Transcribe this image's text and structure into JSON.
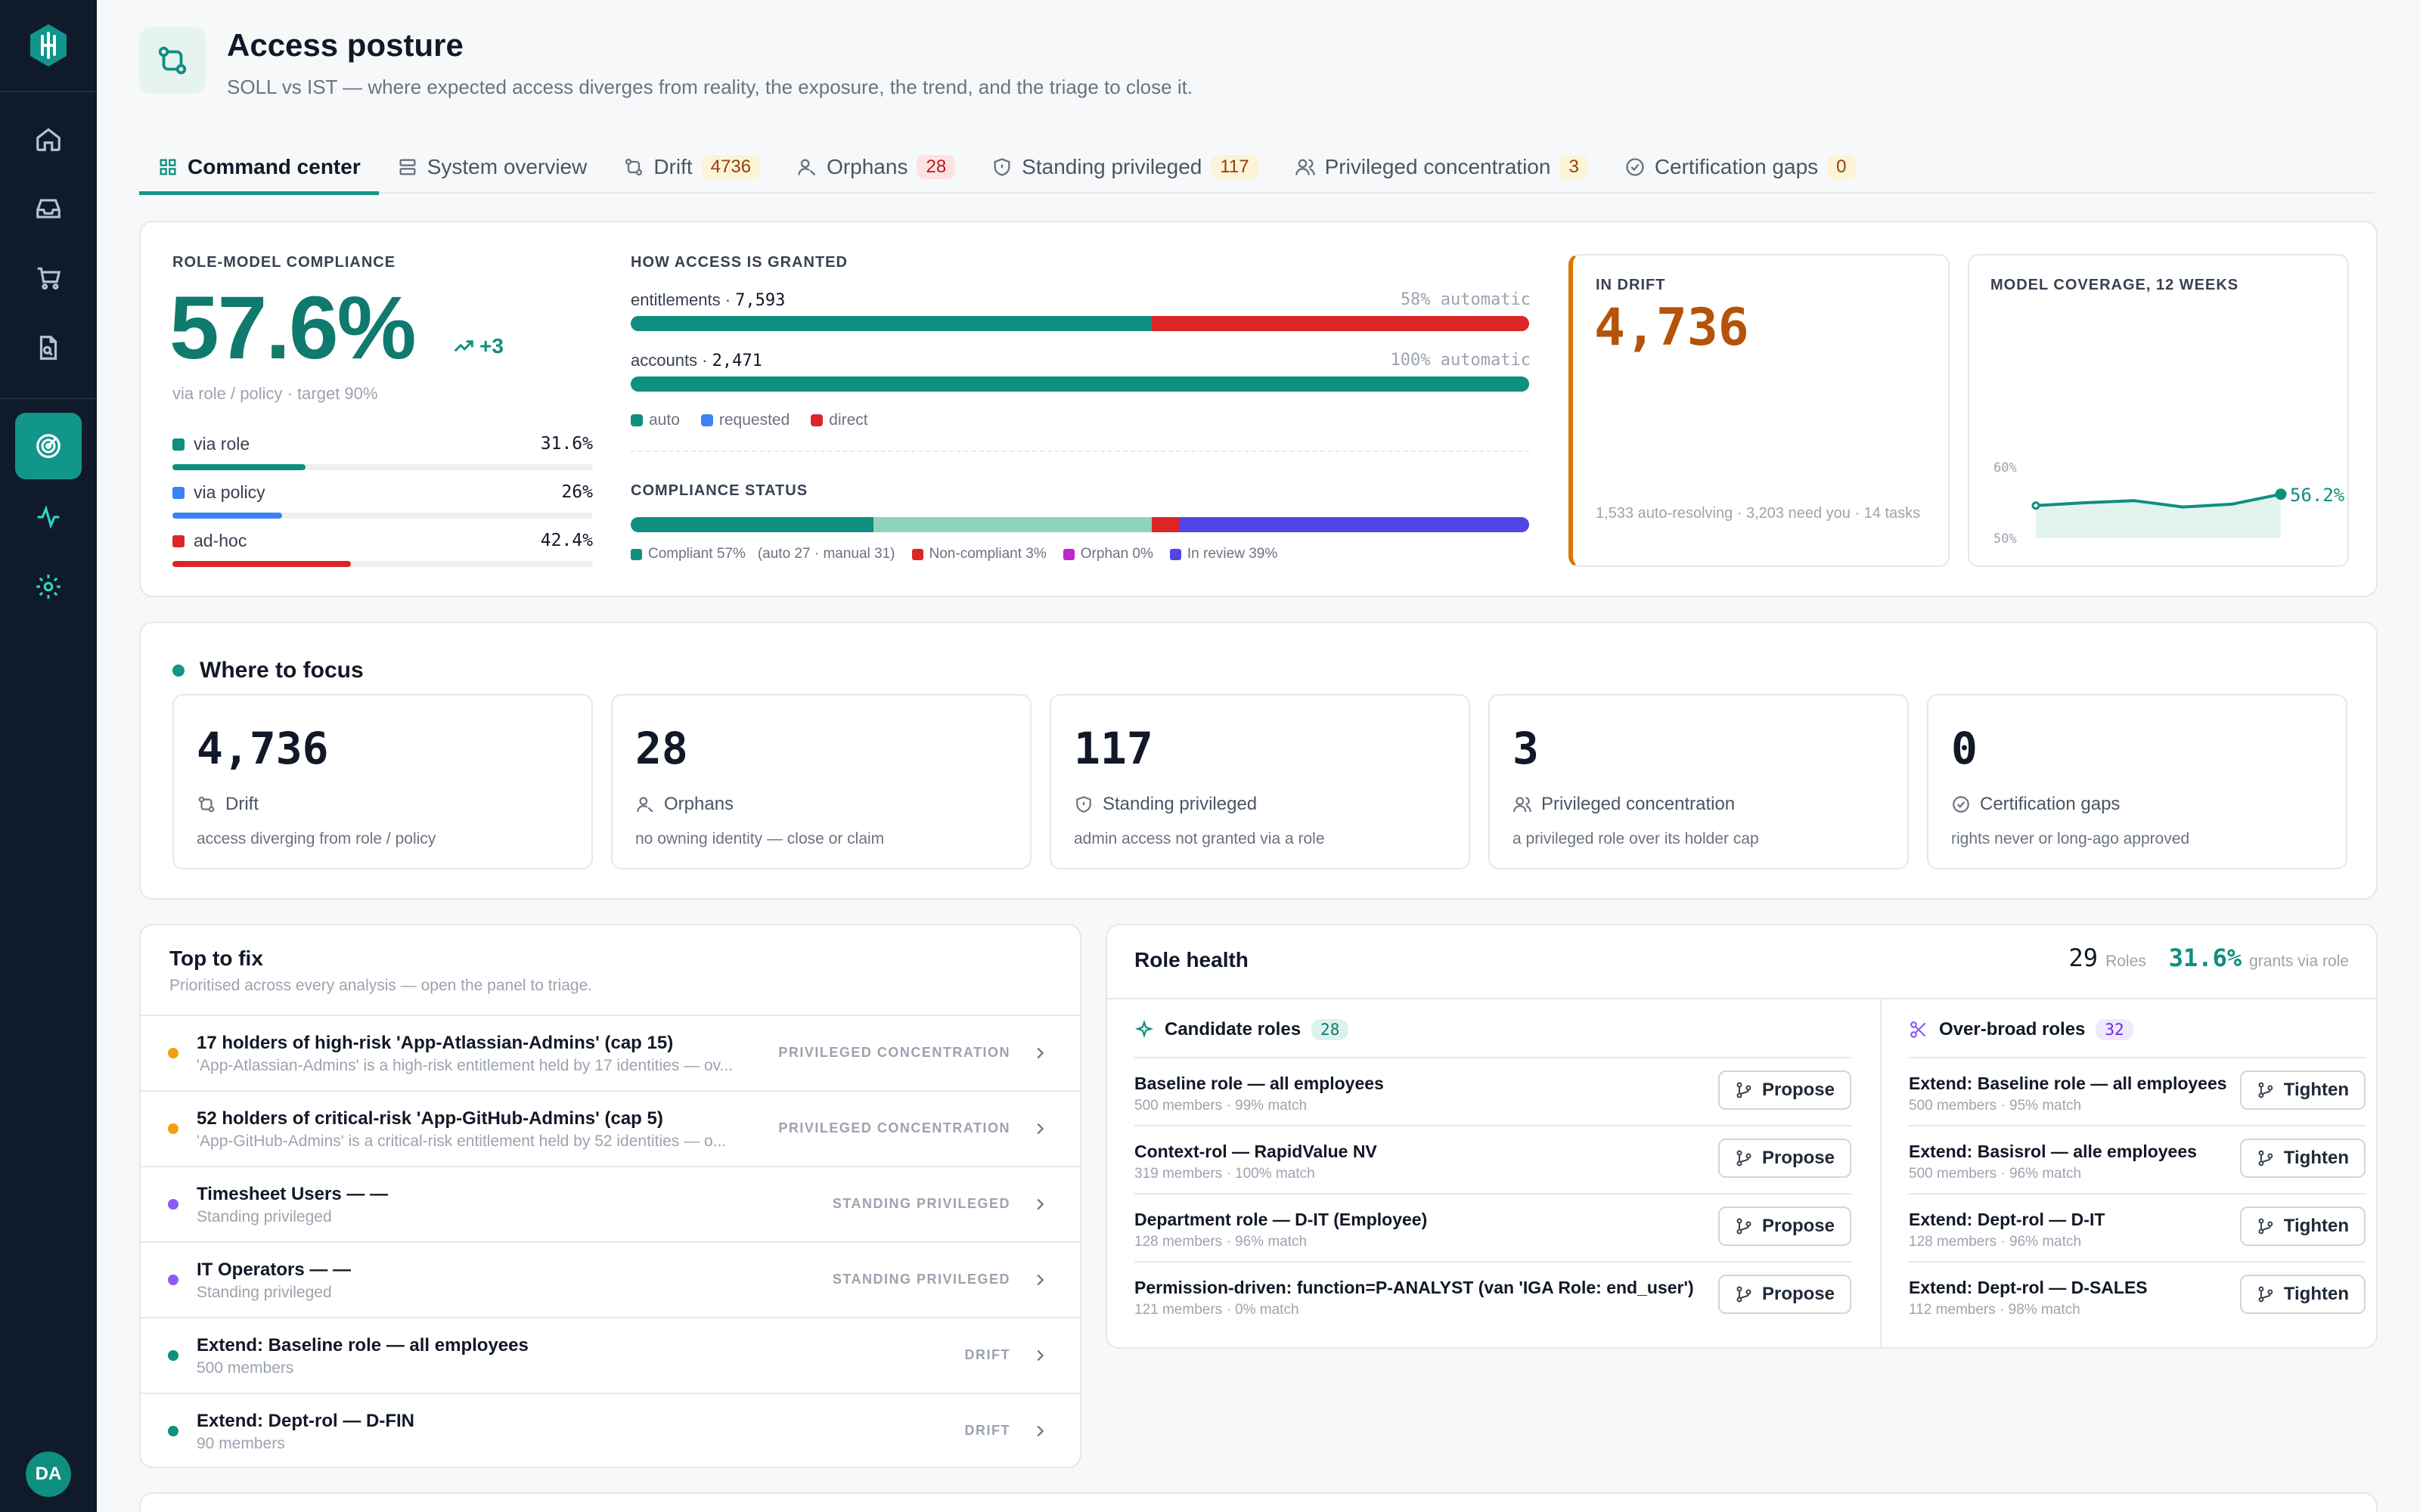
{
  "header": {
    "title": "Access posture",
    "subtitle": "SOLL vs IST — where expected access diverges from reality, the exposure, the trend, and the triage to close it."
  },
  "tabs": [
    {
      "label": "Command center",
      "badge": ""
    },
    {
      "label": "System overview",
      "badge": ""
    },
    {
      "label": "Drift",
      "badge": "4736"
    },
    {
      "label": "Orphans",
      "badge": "28"
    },
    {
      "label": "Standing privileged",
      "badge": "117"
    },
    {
      "label": "Privileged concentration",
      "badge": "3"
    },
    {
      "label": "Certification gaps",
      "badge": "0"
    }
  ],
  "compliance": {
    "label": "ROLE-MODEL COMPLIANCE",
    "value": "57.6%",
    "delta": "+3",
    "sub": "via role / policy · target 90%",
    "rows": [
      {
        "label": "via role",
        "value": "31.6%",
        "fraction": 0.316,
        "color": "#0f8f7f"
      },
      {
        "label": "via policy",
        "value": "26%",
        "fraction": 0.26,
        "color": "#3b82f6"
      },
      {
        "label": "ad-hoc",
        "value": "42.4%",
        "fraction": 0.424,
        "color": "#dc2626"
      }
    ]
  },
  "granted": {
    "label": "HOW ACCESS IS GRANTED",
    "entitlements_label": "entitlements · ",
    "entitlements_count": "7,593",
    "entitlements_auto": "58% automatic",
    "entitlements_auto_fraction": 0.58,
    "accounts_label": "accounts · ",
    "accounts_count": "2,471",
    "accounts_auto": "100% automatic",
    "accounts_auto_fraction": 1.0,
    "legend": [
      "auto",
      "requested",
      "direct"
    ]
  },
  "status": {
    "label": "COMPLIANCE STATUS",
    "segments": [
      {
        "fraction": 0.27,
        "color": "#0f8f7f"
      },
      {
        "fraction": 0.31,
        "color": "#8fd3bf"
      },
      {
        "fraction": 0.03,
        "color": "#dc2626"
      },
      {
        "fraction": 0.39,
        "color": "#4f46e5"
      }
    ],
    "legend_compliant": "Compliant 57%",
    "legend_compliant_detail": "(auto 27 · manual 31)",
    "legend_noncompliant": "Non-compliant 3%",
    "legend_orphan": "Orphan 0%",
    "legend_review": "In review 39%"
  },
  "drift_card": {
    "label": "IN DRIFT",
    "value": "4,736",
    "sub": "1,533 auto-resolving · 3,203 need you · 14 tasks"
  },
  "coverage_card": {
    "label": "MODEL COVERAGE, 12 WEEKS",
    "tick_high": "60%",
    "tick_low": "50%",
    "end_value": "56.2%"
  },
  "chart_data": {
    "type": "area",
    "title": "MODEL COVERAGE, 12 WEEKS",
    "x": [
      1,
      2,
      3,
      4,
      5,
      6
    ],
    "series": [
      {
        "values": [
          54.6,
          55.0,
          55.3,
          54.4,
          54.8,
          56.2
        ]
      }
    ],
    "ylim": [
      50,
      60
    ],
    "yticks": [
      "50%",
      "60%"
    ],
    "grid": false
  },
  "focus": {
    "title": "Where to focus",
    "cards": [
      {
        "value": "4,736",
        "label": "Drift",
        "desc": "access diverging from role / policy"
      },
      {
        "value": "28",
        "label": "Orphans",
        "desc": "no owning identity — close or claim"
      },
      {
        "value": "117",
        "label": "Standing privileged",
        "desc": "admin access not granted via a role"
      },
      {
        "value": "3",
        "label": "Privileged concentration",
        "desc": "a privileged role over its holder cap"
      },
      {
        "value": "0",
        "label": "Certification gaps",
        "desc": "rights never or long-ago approved"
      }
    ]
  },
  "top_fix": {
    "title": "Top to fix",
    "subtitle": "Prioritised across every analysis — open the panel to triage.",
    "rows": [
      {
        "title": "17 holders of high-risk 'App-Atlassian-Admins' (cap 15)",
        "sub": "'App-Atlassian-Admins' is a high-risk entitlement held by 17 identities — ov...",
        "tag": "PRIVILEGED CONCENTRATION",
        "color": "#f59e0b"
      },
      {
        "title": "52 holders of critical-risk 'App-GitHub-Admins' (cap 5)",
        "sub": "'App-GitHub-Admins' is a critical-risk entitlement held by 52 identities — o...",
        "tag": "PRIVILEGED CONCENTRATION",
        "color": "#f59e0b"
      },
      {
        "title": "Timesheet Users — —",
        "sub": "Standing privileged",
        "tag": "STANDING PRIVILEGED",
        "color": "#8b5cf6"
      },
      {
        "title": "IT Operators — —",
        "sub": "Standing privileged",
        "tag": "STANDING PRIVILEGED",
        "color": "#8b5cf6"
      },
      {
        "title": "Extend: Baseline role — all employees",
        "sub": "500 members",
        "tag": "DRIFT",
        "color": "#0f8f7f"
      },
      {
        "title": "Extend: Dept-rol — D-FIN",
        "sub": "90 members",
        "tag": "DRIFT",
        "color": "#0f8f7f"
      }
    ]
  },
  "role_health": {
    "title": "Role health",
    "roles_count": "29",
    "roles_label": "Roles",
    "grants_pct": "31.6%",
    "grants_label": "grants via role",
    "candidate": {
      "title": "Candidate roles",
      "count": "28",
      "button": "Propose",
      "rows": [
        {
          "title": "Baseline role — all employees",
          "sub": "500 members · 99% match"
        },
        {
          "title": "Context-rol — RapidValue NV",
          "sub": "319 members · 100% match"
        },
        {
          "title": "Department role — D-IT (Employee)",
          "sub": "128 members · 96% match"
        },
        {
          "title": "Permission-driven: function=P-ANALYST (van 'IGA Role: end_user')",
          "sub": "121 members · 0% match"
        }
      ]
    },
    "overbroad": {
      "title": "Over-broad roles",
      "count": "32",
      "button": "Tighten",
      "rows": [
        {
          "title": "Extend: Baseline role — all employees",
          "sub": "500 members · 95% match"
        },
        {
          "title": "Extend: Basisrol — alle employees",
          "sub": "500 members · 96% match"
        },
        {
          "title": "Extend: Dept-rol — D-IT",
          "sub": "128 members · 96% match"
        },
        {
          "title": "Extend: Dept-rol — D-SALES",
          "sub": "112 members · 98% match"
        }
      ]
    }
  },
  "user": {
    "initials": "DA"
  }
}
